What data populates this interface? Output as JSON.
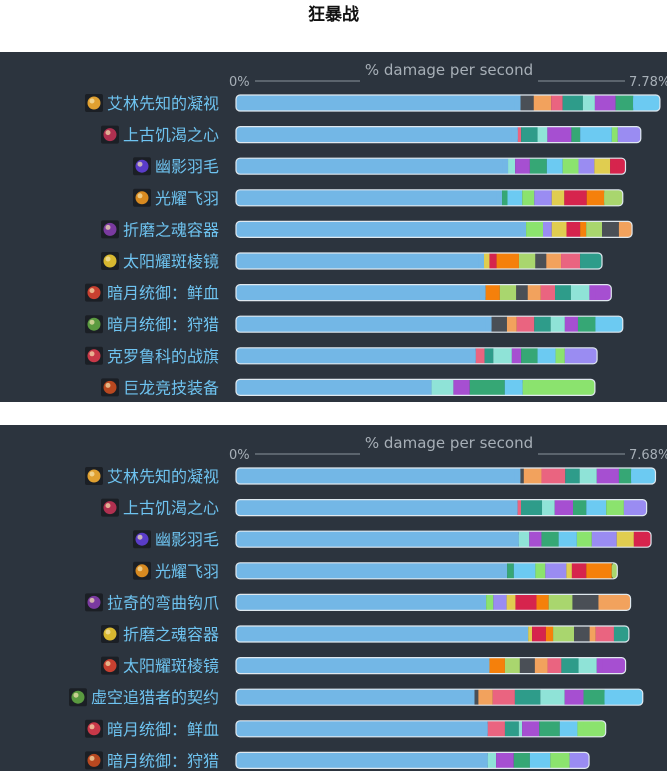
{
  "page": {
    "title": "狂暴战"
  },
  "palette": {
    "base": "#73b7e6",
    "segments": [
      "#4a4f56",
      "#f2a25d",
      "#ea6480",
      "#2e9c8a",
      "#8fe3d7",
      "#a64fd1",
      "#36a775",
      "#6ccaf2",
      "#8be36e",
      "#9a8cf2",
      "#e0cd50",
      "#d6244d",
      "#f5800b",
      "#a9d66e"
    ],
    "axis": "#8a939c",
    "label": "#6ec3f0",
    "axis_text": "#a7afb7"
  },
  "chart_data": [
    {
      "type": "bar",
      "orientation": "horizontal",
      "stacked": true,
      "axis_title": "% damage per second",
      "x_min_label": "0%",
      "x_max_label": "7.78%",
      "xlim": [
        0,
        7.78
      ],
      "categories": [
        "艾林先知的凝视",
        "上古饥渴之心",
        "幽影羽毛",
        "光耀飞羽",
        "折磨之魂容器",
        "太阳耀斑棱镜",
        "暗月统御：鲜血",
        "暗月统御：狩猎",
        "克罗鲁科的战旗",
        "巨龙竞技装备"
      ],
      "icons": [
        "eye-relic-icon",
        "heart-relic-icon",
        "shadow-feather-icon",
        "radiant-plume-icon",
        "soul-vessel-icon",
        "prism-icon",
        "darkmoon-blood-icon",
        "darkmoon-hunt-icon",
        "war-banner-icon",
        "dragon-gear-icon"
      ],
      "values": [
        [
          5.21,
          0.24,
          0.32,
          0.21,
          0.37,
          0.22,
          0.38,
          0.32,
          0.49
        ],
        [
          5.16,
          0.06,
          0.3,
          0.18,
          0.44,
          0.16,
          0.58,
          0.11,
          0.42
        ],
        [
          4.98,
          0.13,
          0.27,
          0.31,
          0.29,
          0.29,
          0.29,
          0.29,
          0.28
        ],
        [
          4.87,
          0.1,
          0.27,
          0.22,
          0.32,
          0.23,
          0.41,
          0.32,
          0.34
        ],
        [
          5.31,
          0.31,
          0.16,
          0.27,
          0.25,
          0.11,
          0.29,
          0.31,
          0.24
        ],
        [
          4.54,
          0.1,
          0.13,
          0.41,
          0.3,
          0.2,
          0.27,
          0.35,
          0.4
        ],
        [
          4.57,
          0.26,
          0.3,
          0.21,
          0.24,
          0.26,
          0.29,
          0.34,
          0.4
        ],
        [
          4.68,
          0.28,
          0.18,
          0.32,
          0.3,
          0.26,
          0.24,
          0.32,
          0.5
        ],
        [
          4.39,
          0.16,
          0.16,
          0.34,
          0.17,
          0.3,
          0.33,
          0.17,
          0.59
        ],
        [
          3.58,
          0.4,
          0.3,
          0.64,
          0.33,
          1.32
        ]
      ]
    },
    {
      "type": "bar",
      "orientation": "horizontal",
      "stacked": true,
      "axis_title": "% damage per second",
      "x_min_label": "0%",
      "x_max_label": "7.68%",
      "xlim": [
        0,
        7.68
      ],
      "categories": [
        "艾林先知的凝视",
        "上古饥渴之心",
        "幽影羽毛",
        "光耀飞羽",
        "拉奇的弯曲钩爪",
        "折磨之魂容器",
        "太阳耀斑棱镜",
        "虚空追猎者的契约",
        "暗月统御：鲜血",
        "暗月统御：狩猎"
      ],
      "icons": [
        "eye-relic-icon",
        "heart-relic-icon",
        "shadow-feather-icon",
        "radiant-plume-icon",
        "hooked-claw-icon",
        "soul-vessel-icon",
        "prism-icon",
        "void-pact-icon",
        "darkmoon-blood-icon",
        "darkmoon-hunt-icon"
      ],
      "values": [
        [
          5.14,
          0.06,
          0.32,
          0.43,
          0.26,
          0.31,
          0.4,
          0.22,
          0.44
        ],
        [
          5.09,
          0.06,
          0.38,
          0.23,
          0.33,
          0.24,
          0.36,
          0.32,
          0.41
        ],
        [
          5.11,
          0.19,
          0.22,
          0.31,
          0.33,
          0.27,
          0.45,
          0.31,
          0.31
        ],
        [
          4.9,
          0.12,
          0.39,
          0.18,
          0.38,
          0.1,
          0.26,
          0.46,
          0.1
        ],
        [
          4.52,
          0.13,
          0.24,
          0.16,
          0.38,
          0.22,
          0.43,
          0.47,
          0.58
        ],
        [
          5.28,
          0.07,
          0.25,
          0.13,
          0.38,
          0.28,
          0.11,
          0.33,
          0.27
        ],
        [
          4.58,
          0.28,
          0.27,
          0.27,
          0.23,
          0.25,
          0.31,
          0.33,
          0.52
        ],
        [
          4.31,
          0.07,
          0.26,
          0.4,
          0.46,
          0.44,
          0.34,
          0.38,
          0.69
        ],
        [
          4.55,
          0.31,
          0.25,
          0.06,
          0.31,
          0.37,
          0.32,
          0.51
        ],
        [
          4.55,
          0.15,
          0.32,
          0.29,
          0.37,
          0.35,
          0.35
        ]
      ]
    }
  ]
}
